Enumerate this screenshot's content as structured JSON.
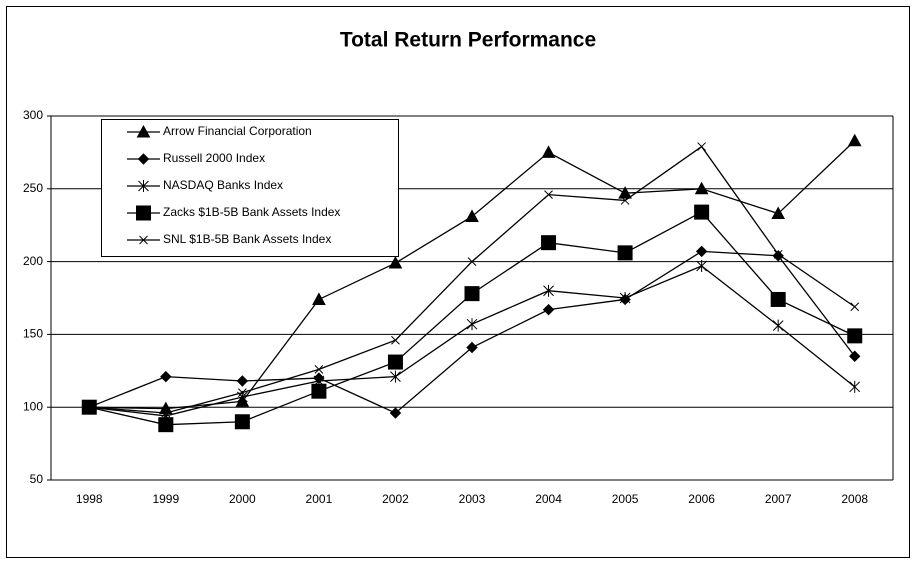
{
  "chart_data": {
    "type": "line",
    "title": "Total Return Performance",
    "categories": [
      "1998",
      "1999",
      "2000",
      "2001",
      "2002",
      "2003",
      "2004",
      "2005",
      "2006",
      "2007",
      "2008"
    ],
    "series": [
      {
        "name": "Arrow Financial Corporation",
        "color": "#000000",
        "marker": "triangle",
        "values": [
          100,
          99,
          104,
          174,
          199,
          231,
          275,
          247,
          250,
          233,
          283
        ]
      },
      {
        "name": "Russell 2000 Index",
        "color": "#000000",
        "marker": "diamond",
        "values": [
          100,
          121,
          118,
          120,
          96,
          141,
          167,
          174,
          207,
          204,
          135
        ]
      },
      {
        "name": "NASDAQ Banks Index",
        "color": "#000000",
        "marker": "asterisk",
        "values": [
          100,
          94,
          107,
          118,
          121,
          157,
          180,
          175,
          197,
          156,
          114
        ]
      },
      {
        "name": "Zacks $1B-5B Bank Assets Index",
        "color": "#000000",
        "marker": "square",
        "values": [
          100,
          88,
          90,
          111,
          131,
          178,
          213,
          206,
          234,
          174,
          149
        ]
      },
      {
        "name": "SNL $1B-5B Bank Assets Index",
        "color": "#000000",
        "marker": "x",
        "values": [
          100,
          96,
          110,
          126,
          146,
          200,
          246,
          242,
          279,
          205,
          169
        ]
      }
    ],
    "ylim": [
      50,
      300
    ],
    "yticks": [
      50,
      100,
      150,
      200,
      250,
      300
    ],
    "grid": true,
    "legend": "upper left"
  }
}
